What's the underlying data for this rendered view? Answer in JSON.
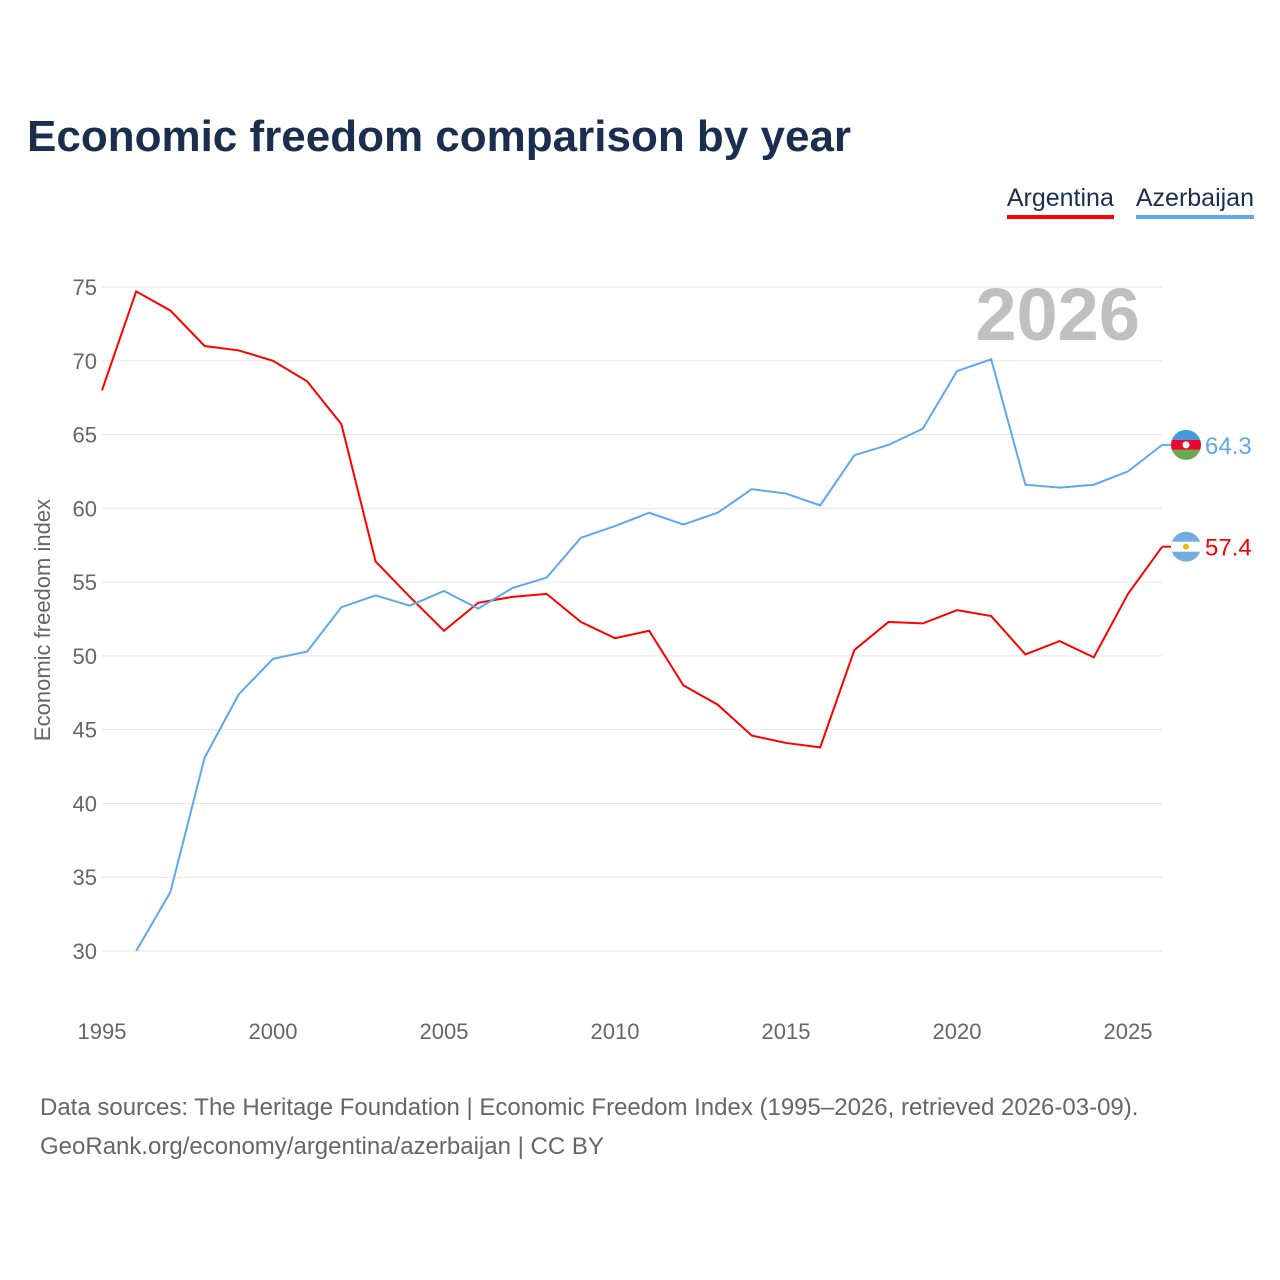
{
  "title": "Economic freedom comparison by year",
  "legend": [
    {
      "label": "Argentina",
      "color": "#ff0000"
    },
    {
      "label": "Azerbaijan",
      "color": "#5ea8ec"
    }
  ],
  "source_line1": "Data sources: The Heritage Foundation | Economic Freedom Index (1995–2026, retrieved 2026-03-09).",
  "source_line2": "GeoRank.org/economy/argentina/azerbaijan | CC BY",
  "chart_data": {
    "type": "line",
    "title": "Economic freedom comparison by year",
    "ylabel": "Economic freedom index",
    "xlabel": "",
    "year_watermark": "2026",
    "xlim": [
      1995,
      2026
    ],
    "ylim": [
      25,
      77
    ],
    "x_ticks": [
      1995,
      2000,
      2005,
      2010,
      2015,
      2020,
      2025
    ],
    "y_ticks": [
      30,
      35,
      40,
      45,
      50,
      55,
      60,
      65,
      70,
      75
    ],
    "grid": true,
    "legend_position": "top-right",
    "series": [
      {
        "name": "Argentina",
        "color": "#ff0000",
        "end_label": "57.4",
        "x": [
          1995,
          1996,
          1997,
          1998,
          1999,
          2000,
          2001,
          2002,
          2003,
          2004,
          2005,
          2006,
          2007,
          2008,
          2009,
          2010,
          2011,
          2012,
          2013,
          2014,
          2015,
          2016,
          2017,
          2018,
          2019,
          2020,
          2021,
          2022,
          2023,
          2024,
          2025,
          2026
        ],
        "values": [
          68.0,
          74.7,
          73.4,
          71.0,
          70.7,
          70.0,
          68.6,
          65.7,
          56.4,
          54.0,
          51.7,
          53.6,
          54.0,
          54.2,
          52.3,
          51.2,
          51.7,
          48.0,
          46.7,
          44.6,
          44.1,
          43.8,
          50.4,
          52.3,
          52.2,
          53.1,
          52.7,
          50.1,
          51.0,
          49.9,
          54.2,
          57.4
        ]
      },
      {
        "name": "Azerbaijan",
        "color": "#5ea8ec",
        "end_label": "64.3",
        "x": [
          1996,
          1997,
          1998,
          1999,
          2000,
          2001,
          2002,
          2003,
          2004,
          2005,
          2006,
          2007,
          2008,
          2009,
          2010,
          2011,
          2012,
          2013,
          2014,
          2015,
          2016,
          2017,
          2018,
          2019,
          2020,
          2021,
          2022,
          2023,
          2024,
          2025,
          2026
        ],
        "values": [
          30.0,
          34.0,
          43.1,
          47.4,
          49.8,
          50.3,
          53.3,
          54.1,
          53.4,
          54.4,
          53.2,
          54.6,
          55.3,
          58.0,
          58.8,
          59.7,
          58.9,
          59.7,
          61.3,
          61.0,
          60.2,
          63.6,
          64.3,
          65.4,
          69.3,
          70.1,
          61.6,
          61.4,
          61.6,
          62.5,
          64.3
        ]
      }
    ]
  }
}
